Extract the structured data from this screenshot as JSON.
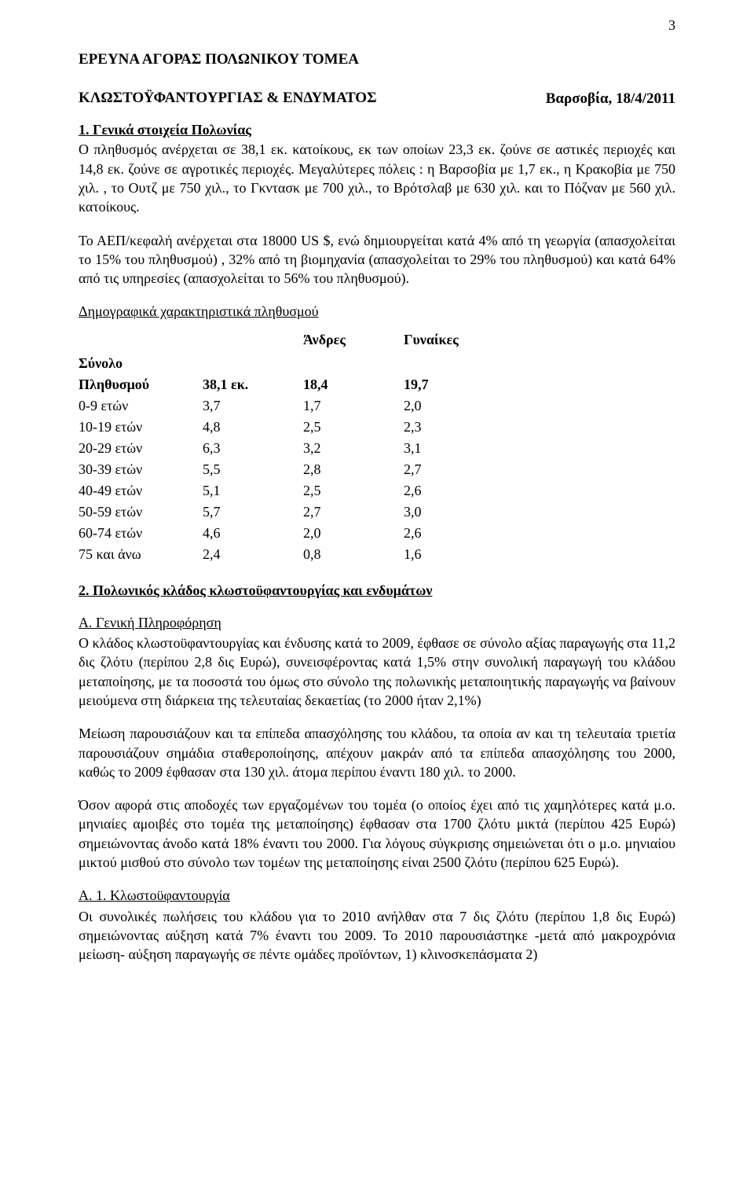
{
  "page_number": "3",
  "title_line1": "ΕΡΕΥΝΑ ΑΓΟΡΑΣ ΠΟΛΩΝΙΚΟΥ ΤΟΜΕΑ",
  "title_line2": "ΚΛΩΣΤΟΫΦΑΝΤΟΥΡΓΙΑΣ & ΕΝΔΥΜΑΤΟΣ",
  "date_place": "Βαρσοβία, 18/4/2011",
  "h1": "1. Γενικά στοιχεία Πολωνίας",
  "p1": "Ο πληθυσμός ανέρχεται σε 38,1 εκ. κατοίκους, εκ των οποίων 23,3 εκ. ζούνε σε αστικές περιοχές και 14,8 εκ. ζούνε σε αγροτικές περιοχές. Μεγαλύτερες πόλεις : η Βαρσοβία με 1,7 εκ., η Κρακοβία με 750 χιλ. , το Ουτζ με 750 χιλ., το Γκντασκ με 700 χιλ., το Βρότσλαβ με 630 χιλ. και το Πόζναν με 560 χιλ. κατοίκους.",
  "p2": "Το ΑΕΠ/κεφαλή ανέρχεται στα 18000 US $, ενώ δημιουργείται κατά 4% από τη γεωργία (απασχολείται το 15% του πληθυσμού) , 32% από τη βιομηχανία (απασχολείται το 29% του πληθυσμού) και κατά 64% από τις υπηρεσίες (απασχολείται το 56% του πληθυσμού).",
  "p3_underline": "Δημογραφικά χαρακτηριστικά πληθυσμού",
  "demo_table": {
    "header_top": {
      "c3": "Άνδρες",
      "c4": "Γυναίκες"
    },
    "header_side1": "Σύνολο",
    "header_side2": "Πληθυσμού",
    "total_row": {
      "c2": "38,1 εκ.",
      "c3": "18,4",
      "c4": "19,7"
    },
    "rows": [
      {
        "label": "0-9 ετών",
        "c2": "3,7",
        "c3": "1,7",
        "c4": "2,0"
      },
      {
        "label": "10-19 ετών",
        "c2": "4,8",
        "c3": "2,5",
        "c4": "2,3"
      },
      {
        "label": "20-29 ετών",
        "c2": "6,3",
        "c3": "3,2",
        "c4": "3,1"
      },
      {
        "label": "30-39 ετών",
        "c2": "5,5",
        "c3": "2,8",
        "c4": "2,7"
      },
      {
        "label": "40-49 ετών",
        "c2": "5,1",
        "c3": "2,5",
        "c4": "2,6"
      },
      {
        "label": "50-59 ετών",
        "c2": "5,7",
        "c3": "2,7",
        "c4": "3,0"
      },
      {
        "label": "60-74 ετών",
        "c2": "4,6",
        "c3": "2,0",
        "c4": "2,6"
      },
      {
        "label": "75 και άνω",
        "c2": "2,4",
        "c3": "0,8",
        "c4": "1,6"
      }
    ]
  },
  "h2": "2. Πολωνικός κλάδος κλωστοϋφαντουργίας και ενδυμάτων",
  "hA": "Α. Γενική Πληροφόρηση",
  "pA1": "Ο κλάδος κλωστοϋφαντουργίας και ένδυσης κατά το 2009, έφθασε σε σύνολο αξίας παραγωγής στα 11,2 δις ζλότυ (περίπου 2,8 δις Ευρώ), συνεισφέροντας κατά 1,5% στην συνολική παραγωγή του κλάδου μεταποίησης, με τα ποσοστά του όμως στο σύνολο της πολωνικής μεταποιητικής παραγωγής να βαίνουν μειούμενα στη διάρκεια της τελευταίας δεκαετίας (το 2000 ήταν 2,1%)",
  "pA2": "Μείωση παρουσιάζουν και τα επίπεδα απασχόλησης του κλάδου, τα οποία αν και τη τελευταία τριετία παρουσιάζουν σημάδια σταθεροποίησης, απέχουν μακράν από τα επίπεδα απασχόλησης του 2000, καθώς το 2009 έφθασαν στα 130 χιλ. άτομα περίπου έναντι 180 χιλ. το 2000.",
  "pA3": "Όσον αφορά στις αποδοχές των εργαζομένων του τομέα (ο οποίος έχει από τις χαμηλότερες κατά μ.ο. μηνιαίες αμοιβές στο τομέα της μεταποίησης) έφθασαν στα 1700 ζλότυ μικτά (περίπου 425 Ευρώ) σημειώνοντας άνοδο κατά 18% έναντι του 2000. Για λόγους σύγκρισης σημειώνεται ότι ο μ.ο. μηνιαίου μικτού μισθού στο σύνολο των τομέων της μεταποίησης είναι 2500 ζλότυ (περίπου 625 Ευρώ).",
  "hA1": "Α. 1. Κλωστοϋφαντουργία",
  "pA1b": "Οι συνολικές πωλήσεις του κλάδου για το 2010 ανήλθαν στα 7 δις ζλότυ (περίπου 1,8 δις Ευρώ) σημειώνοντας αύξηση κατά 7% έναντι του 2009. Το 2010 παρουσιάστηκε -μετά από μακροχρόνια μείωση- αύξηση παραγωγής σε πέντε ομάδες προϊόντων, 1) κλινοσκεπάσματα 2)"
}
